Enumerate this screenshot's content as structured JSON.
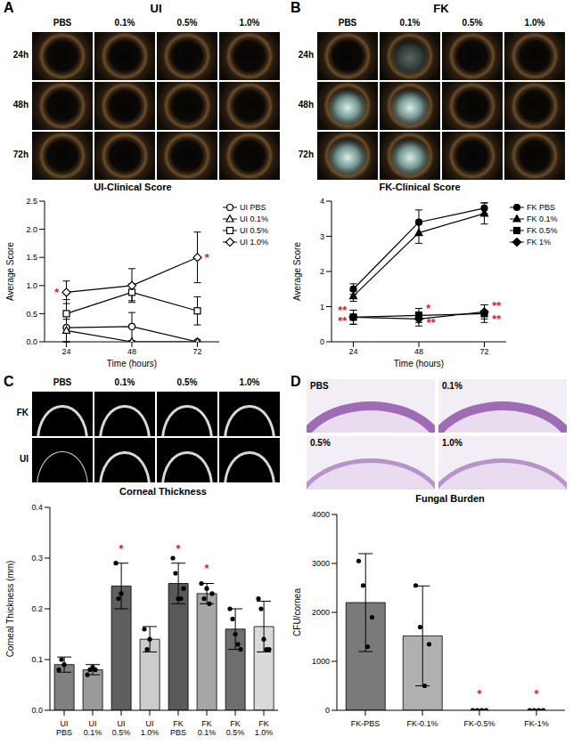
{
  "panels": [
    {
      "letter": "A",
      "images": {
        "title": "UI",
        "columns": [
          "PBS",
          "0.1%",
          "0.5%",
          "1.0%"
        ],
        "rows": [
          "24h",
          "48h",
          "72h"
        ]
      }
    },
    {
      "letter": "B",
      "images": {
        "title": "FK",
        "columns": [
          "PBS",
          "0.1%",
          "0.5%",
          "1.0%"
        ],
        "rows": [
          "24h",
          "48h",
          "72h"
        ]
      }
    },
    {
      "letter": "C",
      "images": {
        "columns": [
          "PBS",
          "0.1%",
          "0.5%",
          "1.0%"
        ],
        "rows": [
          "FK",
          "UI"
        ]
      }
    },
    {
      "letter": "D",
      "images": {
        "labels": [
          "PBS",
          "0.1%",
          "0.5%",
          "1.0%"
        ]
      }
    }
  ],
  "chart_data": [
    {
      "type": "line",
      "title": "UI-Clinical Score",
      "x_label": "Time (hours)",
      "y_label": "Average Score",
      "x": [
        24,
        48,
        72
      ],
      "xlim": [
        16,
        80
      ],
      "xticks": [
        24,
        48,
        72
      ],
      "ylim": [
        0,
        2.5
      ],
      "yticks": [
        {
          "value": 0,
          "label": "0.0"
        },
        0.5,
        {
          "value": 1,
          "label": "1.0"
        },
        1.5,
        {
          "value": 2,
          "label": "2.0"
        },
        2.5
      ],
      "legend": "right",
      "series": [
        {
          "name": "UI PBS",
          "color": "#000000",
          "marker": "open_circle",
          "values": [
            0.25,
            0.27,
            0
          ],
          "errors": [
            0.25,
            0.25,
            0
          ]
        },
        {
          "name": "UI 0.1%",
          "color": "#000000",
          "marker": "open_triangle",
          "values": [
            0.2,
            0,
            0
          ],
          "errors": [
            0.2,
            0,
            0
          ]
        },
        {
          "name": "UI 0.5%",
          "color": "#000000",
          "marker": "open_square",
          "values": [
            0.5,
            0.88,
            0.55
          ],
          "errors": [
            0.25,
            0.15,
            0.25
          ]
        },
        {
          "name": "UI 1.0%",
          "color": "#000000",
          "marker": "open_diamond",
          "values": [
            0.88,
            1,
            1.5
          ],
          "errors": [
            0.2,
            0.3,
            0.45
          ]
        }
      ],
      "annotations": [
        {
          "text": "*",
          "x": 20.5,
          "y": 0.88,
          "color": "#e31a1c"
        },
        {
          "text": "*",
          "x": 75.5,
          "y": 1.5,
          "color": "#e31a1c"
        }
      ]
    },
    {
      "type": "line",
      "title": "FK-Clinical Score",
      "x_label": "Time (hours)",
      "y_label": "Average Score",
      "x": [
        24,
        48,
        72
      ],
      "xlim": [
        16,
        80
      ],
      "xticks": [
        24,
        48,
        72
      ],
      "ylim": [
        0,
        4
      ],
      "yticks": [
        0,
        1,
        2,
        3,
        4
      ],
      "legend": "right",
      "series": [
        {
          "name": "FK PBS",
          "color": "#000000",
          "marker": "circle",
          "values": [
            1.5,
            3.4,
            3.8
          ],
          "errors": [
            0.15,
            0.35,
            0.15
          ]
        },
        {
          "name": "FK 0.1%",
          "color": "#000000",
          "marker": "triangle",
          "values": [
            1.3,
            3.1,
            3.65
          ],
          "errors": [
            0.15,
            0.3,
            0.3
          ]
        },
        {
          "name": "FK 0.5%",
          "color": "#000000",
          "marker": "square",
          "values": [
            0.7,
            0.75,
            0.8
          ],
          "errors": [
            0.2,
            0.2,
            0.25
          ]
        },
        {
          "name": "FK 1%",
          "color": "#000000",
          "marker": "diamond",
          "values": [
            0.7,
            0.65,
            0.85
          ],
          "errors": [
            0.2,
            0.2,
            0.2
          ]
        }
      ],
      "annotations": [
        {
          "text": "**",
          "x": 20,
          "y": 0.9,
          "color": "#e31a1c"
        },
        {
          "text": "**",
          "x": 20,
          "y": 0.6,
          "color": "#e31a1c"
        },
        {
          "text": "*",
          "x": 51.5,
          "y": 0.95,
          "color": "#e31a1c"
        },
        {
          "text": "**",
          "x": 52.5,
          "y": 0.55,
          "color": "#e31a1c"
        },
        {
          "text": "**",
          "x": 76.5,
          "y": 1.05,
          "color": "#e31a1c"
        },
        {
          "text": "**",
          "x": 76.5,
          "y": 0.65,
          "color": "#e31a1c"
        }
      ]
    },
    {
      "type": "bar",
      "title": "Corneal Thickness",
      "y_label": "Corneal Thickness (mm)",
      "categories": [
        "UI PBS",
        "UI 0.1%",
        "UI 0.5%",
        "UI 1.0%",
        "FK PBS",
        "FK 0.1%",
        "FK 0.5%",
        "FK 1.0%"
      ],
      "values": [
        0.09,
        0.08,
        0.245,
        0.14,
        0.25,
        0.23,
        0.16,
        0.165
      ],
      "errors": [
        0.015,
        0.01,
        0.045,
        0.025,
        0.04,
        0.02,
        0.04,
        0.05
      ],
      "points": [
        [
          0.08,
          0.1,
          0.09
        ],
        [
          0.07,
          0.08,
          0.085,
          0.08
        ],
        [
          0.29,
          0.22,
          0.23
        ],
        [
          0.16,
          0.12,
          0.14
        ],
        [
          0.3,
          0.27,
          0.22,
          0.22,
          0.24
        ],
        [
          0.25,
          0.22,
          0.24,
          0.21,
          0.23
        ],
        [
          0.2,
          0.18,
          0.15,
          0.13,
          0.12
        ],
        [
          0.22,
          0.2,
          0.14,
          0.12,
          0.12
        ]
      ],
      "colors": [
        "#808080",
        "#9a9a9a",
        "#5f5f5f",
        "#cccccc",
        "#595959",
        "#a6a6a6",
        "#6e6e6e",
        "#d9d9d9"
      ],
      "ylim": [
        0,
        0.4
      ],
      "yticks": [
        {
          "value": 0,
          "label": "0.0"
        },
        0.1,
        0.2,
        0.3,
        0.4
      ],
      "annotations": [
        {
          "text": "*",
          "category": "UI 0.5%",
          "y": 0.32,
          "color": "#e31a1c"
        },
        {
          "text": "*",
          "category": "FK PBS",
          "y": 0.32,
          "color": "#e31a1c"
        },
        {
          "text": "*",
          "category": "FK 0.1%",
          "y": 0.28,
          "color": "#e31a1c"
        }
      ]
    },
    {
      "type": "bar",
      "title": "Fungal Burden",
      "y_label": "CFU/cornea",
      "categories": [
        "FK-PBS",
        "FK-0.1%",
        "FK-0.5%",
        "FK-1%"
      ],
      "values": [
        2200,
        1520,
        0,
        0
      ],
      "errors": [
        1000,
        1020,
        0,
        0
      ],
      "points": [
        [
          3050,
          2550,
          1300,
          1900
        ],
        [
          2550,
          1700,
          500,
          1350
        ],
        [
          0,
          0,
          0,
          0
        ],
        [
          0,
          0,
          0,
          0
        ]
      ],
      "colors": [
        "#7a7a7a",
        "#b0b0b0",
        "#7a7a7a",
        "#b0b0b0"
      ],
      "ylim": [
        0,
        4000
      ],
      "yticks": [
        0,
        1000,
        2000,
        3000,
        4000
      ],
      "annotations": [
        {
          "text": "*",
          "category": "FK-0.5%",
          "y": 350,
          "color": "#e31a1c"
        },
        {
          "text": "*",
          "category": "FK-1%",
          "y": 350,
          "color": "#e31a1c"
        }
      ]
    }
  ]
}
